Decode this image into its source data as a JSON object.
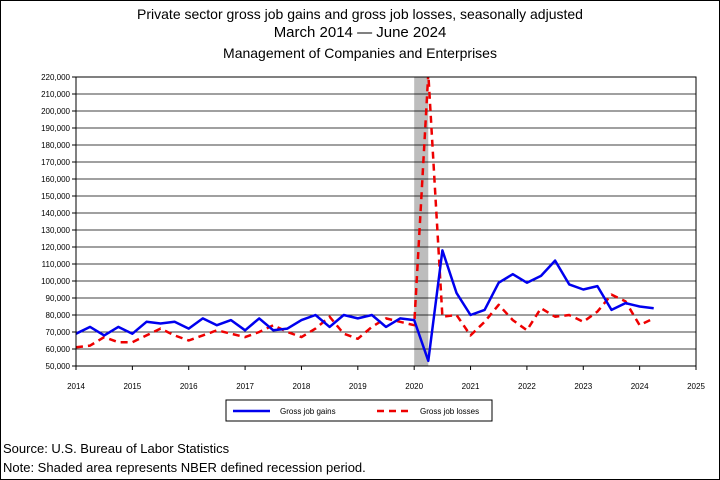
{
  "chart_data": {
    "type": "line",
    "title": "Private sector gross job gains and gross job losses, seasonally adjusted",
    "subtitle": "March 2014 — June 2024",
    "subtitle2": "Management of Companies and Enterprises",
    "ylim": [
      50000,
      220000
    ],
    "y_ticks": [
      50000,
      60000,
      70000,
      80000,
      90000,
      100000,
      110000,
      120000,
      130000,
      140000,
      150000,
      160000,
      170000,
      180000,
      190000,
      200000,
      210000,
      220000
    ],
    "y_tick_labels": [
      "50,000",
      "60,000",
      "70,000",
      "80,000",
      "90,000",
      "100,000",
      "110,000",
      "120,000",
      "130,000",
      "140,000",
      "150,000",
      "160,000",
      "170,000",
      "180,000",
      "190,000",
      "200,000",
      "210,000",
      "220,000"
    ],
    "xlim": [
      2014,
      2025
    ],
    "x_ticks": [
      2014,
      2015,
      2016,
      2017,
      2018,
      2019,
      2020,
      2021,
      2022,
      2023,
      2024,
      2025
    ],
    "x_tick_labels": [
      "2014",
      "2015",
      "2016",
      "2017",
      "2018",
      "2019",
      "2020",
      "2021",
      "2022",
      "2023",
      "2024",
      "2025"
    ],
    "recession": [
      2020.0,
      2020.25
    ],
    "grid": true,
    "legend_placement": "bottom-center",
    "x": [
      2014.0,
      2014.25,
      2014.5,
      2014.75,
      2015.0,
      2015.25,
      2015.5,
      2015.75,
      2016.0,
      2016.25,
      2016.5,
      2016.75,
      2017.0,
      2017.25,
      2017.5,
      2017.75,
      2018.0,
      2018.25,
      2018.5,
      2018.75,
      2019.0,
      2019.25,
      2019.5,
      2019.75,
      2020.0,
      2020.25,
      2020.5,
      2020.75,
      2021.0,
      2021.25,
      2021.5,
      2021.75,
      2022.0,
      2022.25,
      2022.5,
      2022.75,
      2023.0,
      2023.25,
      2023.5,
      2023.75,
      2024.0,
      2024.25
    ],
    "series": [
      {
        "name": "Gross job gains",
        "color": "#0000ee",
        "style": "solid",
        "values": [
          69000,
          73000,
          68000,
          73000,
          69000,
          76000,
          75000,
          76000,
          72000,
          78000,
          74000,
          77000,
          71000,
          78000,
          71000,
          72000,
          77000,
          80000,
          73000,
          80000,
          78000,
          80000,
          73000,
          78000,
          77000,
          53000,
          118000,
          93000,
          80000,
          83000,
          99000,
          104000,
          99000,
          103000,
          112000,
          98000,
          95000,
          97000,
          83000,
          87000,
          85000,
          84000
        ]
      },
      {
        "name": "Gross job losses",
        "color": "#ee0000",
        "style": "dashed",
        "values": [
          61000,
          62000,
          67000,
          64000,
          64000,
          68000,
          72000,
          68000,
          65000,
          68000,
          71000,
          69000,
          67000,
          70000,
          74000,
          70000,
          67000,
          72000,
          79000,
          69000,
          66000,
          73000,
          78000,
          76000,
          74000,
          222000,
          79000,
          80000,
          68000,
          76000,
          86000,
          77000,
          71000,
          84000,
          79000,
          80000,
          76000,
          82000,
          92000,
          88000,
          74000,
          78000
        ]
      }
    ]
  },
  "footer": {
    "source": "Source: U.S. Bureau of Labor Statistics",
    "note": "Note: Shaded area represents NBER defined recession period."
  }
}
